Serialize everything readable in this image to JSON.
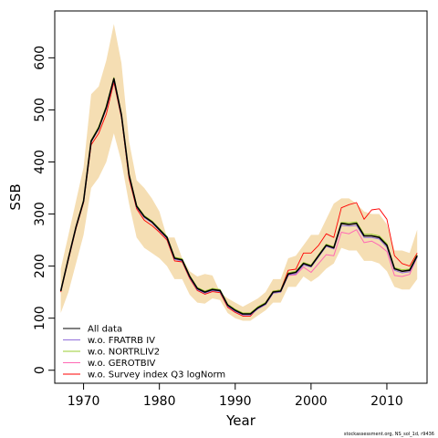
{
  "chart_data": {
    "type": "line",
    "xlabel": "Year",
    "ylabel": "SSB",
    "xlim": [
      1966.2,
      2015.3
    ],
    "ylim": [
      -25,
      690
    ],
    "x_ticks": [
      1970,
      1980,
      1990,
      2000,
      2010
    ],
    "y_ticks": [
      0,
      100,
      200,
      300,
      400,
      500,
      600
    ],
    "legend_position": "bottom-left",
    "footer": "stockassessment.org, NS_sol_1d, r9436",
    "x": [
      1967,
      1968,
      1969,
      1970,
      1971,
      1972,
      1973,
      1974,
      1975,
      1976,
      1977,
      1978,
      1979,
      1980,
      1981,
      1982,
      1983,
      1984,
      1985,
      1986,
      1987,
      1988,
      1989,
      1990,
      1991,
      1992,
      1993,
      1994,
      1995,
      1996,
      1997,
      1998,
      1999,
      2000,
      2001,
      2002,
      2003,
      2004,
      2005,
      2006,
      2007,
      2008,
      2009,
      2010,
      2011,
      2012,
      2013,
      2014
    ],
    "confidence_band": {
      "color": "#f5deb3",
      "upper": [
        195,
        260,
        325,
        390,
        530,
        545,
        595,
        665,
        590,
        440,
        365,
        350,
        330,
        305,
        255,
        255,
        215,
        190,
        180,
        185,
        182,
        150,
        138,
        130,
        122,
        130,
        138,
        150,
        175,
        175,
        215,
        220,
        240,
        260,
        260,
        290,
        320,
        330,
        330,
        320,
        305,
        300,
        300,
        280,
        230,
        230,
        225,
        270
      ],
      "lower": [
        110,
        150,
        205,
        260,
        350,
        370,
        400,
        455,
        400,
        320,
        255,
        235,
        225,
        215,
        200,
        175,
        175,
        145,
        130,
        128,
        138,
        135,
        110,
        100,
        95,
        95,
        105,
        115,
        130,
        130,
        160,
        160,
        180,
        170,
        180,
        195,
        205,
        235,
        230,
        230,
        210,
        210,
        205,
        190,
        160,
        155,
        155,
        175
      ]
    },
    "series": [
      {
        "name": "All data",
        "color": "#000000",
        "width": 1.6,
        "values": [
          152,
          215,
          275,
          325,
          440,
          465,
          505,
          560,
          490,
          375,
          315,
          295,
          285,
          270,
          255,
          215,
          212,
          180,
          157,
          150,
          155,
          153,
          125,
          115,
          108,
          108,
          120,
          128,
          150,
          152,
          185,
          188,
          205,
          200,
          220,
          240,
          235,
          282,
          280,
          282,
          258,
          258,
          255,
          240,
          195,
          190,
          192,
          220
        ]
      },
      {
        "name": "w.o. FRATRB IV",
        "color": "#9370db",
        "width": 1,
        "values": [
          152,
          214,
          274,
          324,
          438,
          463,
          502,
          557,
          488,
          373,
          313,
          293,
          283,
          268,
          253,
          213,
          210,
          178,
          155,
          148,
          153,
          151,
          123,
          113,
          106,
          106,
          118,
          126,
          148,
          150,
          183,
          185,
          202,
          198,
          218,
          238,
          233,
          278,
          277,
          278,
          255,
          255,
          252,
          236,
          192,
          187,
          189,
          217
        ]
      },
      {
        "name": "w.o. NORTRLIV2",
        "color": "#9acd32",
        "width": 1,
        "values": [
          154,
          216,
          276,
          327,
          442,
          468,
          508,
          562,
          492,
          377,
          317,
          297,
          287,
          272,
          257,
          217,
          214,
          182,
          159,
          152,
          157,
          155,
          127,
          117,
          110,
          110,
          122,
          130,
          152,
          154,
          187,
          190,
          207,
          202,
          222,
          242,
          237,
          284,
          283,
          285,
          261,
          261,
          258,
          243,
          197,
          193,
          194,
          222
        ]
      },
      {
        "name": "w.o. GEROTBIV",
        "color": "#ff69b4",
        "width": 1,
        "values": [
          153,
          215,
          275,
          326,
          440,
          465,
          505,
          560,
          490,
          375,
          315,
          295,
          285,
          270,
          255,
          215,
          212,
          180,
          157,
          150,
          155,
          153,
          125,
          115,
          108,
          108,
          118,
          126,
          148,
          150,
          182,
          183,
          198,
          188,
          205,
          222,
          220,
          265,
          262,
          270,
          245,
          248,
          240,
          228,
          182,
          180,
          184,
          218
        ]
      },
      {
        "name": "w.o. Survey index Q3 logNorm",
        "color": "#ff0000",
        "width": 0.9,
        "values": [
          150,
          212,
          272,
          322,
          433,
          455,
          492,
          553,
          485,
          368,
          310,
          288,
          278,
          265,
          250,
          210,
          208,
          176,
          153,
          146,
          151,
          149,
          121,
          111,
          104,
          104,
          120,
          130,
          152,
          154,
          192,
          194,
          225,
          225,
          240,
          262,
          255,
          312,
          318,
          322,
          290,
          308,
          310,
          290,
          220,
          205,
          200,
          225
        ]
      }
    ]
  }
}
